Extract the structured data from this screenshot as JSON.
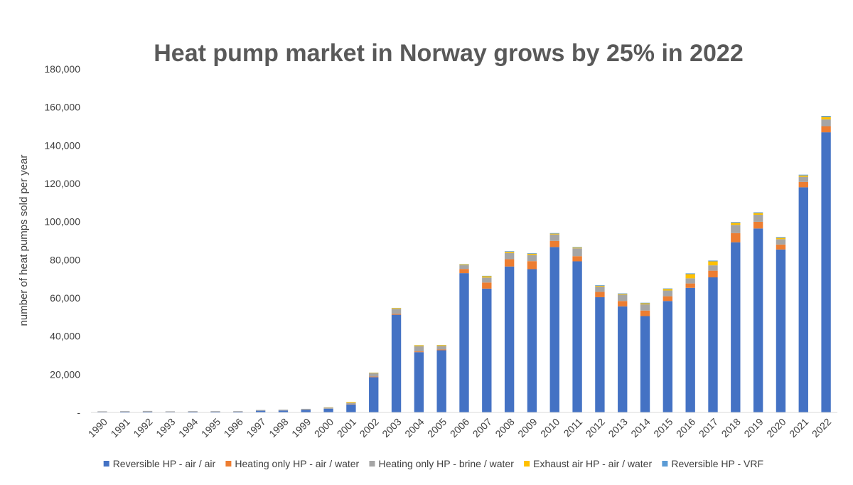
{
  "chart_data": {
    "type": "bar",
    "stacked": true,
    "title": "Heat pump market in Norway grows by 25% in 2022",
    "xlabel": "",
    "ylabel": "number of heat pumps sold per year",
    "ylim": [
      0,
      180000
    ],
    "yticks": [
      0,
      20000,
      40000,
      60000,
      80000,
      100000,
      120000,
      140000,
      160000,
      180000
    ],
    "ytick_labels": [
      "-",
      "20,000",
      "40,000",
      "60,000",
      "80,000",
      "100,000",
      "120,000",
      "140,000",
      "160,000",
      "180,000"
    ],
    "grid": false,
    "legend_position": "bottom",
    "categories": [
      "1990",
      "1991",
      "1992",
      "1993",
      "1994",
      "1995",
      "1996",
      "1997",
      "1998",
      "1999",
      "2000",
      "2001",
      "2002",
      "2003",
      "2004",
      "2005",
      "2006",
      "2007",
      "2008",
      "2009",
      "2010",
      "2011",
      "2012",
      "2013",
      "2014",
      "2015",
      "2016",
      "2017",
      "2018",
      "2019",
      "2020",
      "2021",
      "2022"
    ],
    "series": [
      {
        "name": "Reversible HP - air / air",
        "color": "#4472C4",
        "values": [
          300,
          400,
          400,
          300,
          400,
          400,
          400,
          900,
          1000,
          1400,
          1900,
          4200,
          18500,
          51200,
          31600,
          32600,
          73000,
          64900,
          76500,
          75100,
          86700,
          79200,
          60400,
          55600,
          50500,
          58400,
          65300,
          70800,
          89200,
          96400,
          85400,
          118000,
          146800
        ]
      },
      {
        "name": "Heating only HP - air / water",
        "color": "#ED7D31",
        "values": [
          0,
          0,
          0,
          0,
          0,
          0,
          0,
          0,
          0,
          0,
          0,
          100,
          300,
          500,
          400,
          400,
          2200,
          3200,
          3800,
          4200,
          3200,
          2700,
          2800,
          2800,
          2900,
          2500,
          2300,
          3500,
          4800,
          3500,
          2600,
          2800,
          3200
        ]
      },
      {
        "name": "Heating only HP - brine / water",
        "color": "#A5A5A5",
        "values": [
          300,
          300,
          400,
          300,
          300,
          300,
          300,
          400,
          500,
          500,
          700,
          800,
          1700,
          2600,
          2700,
          1800,
          2000,
          2600,
          3300,
          3300,
          3400,
          4100,
          2800,
          3300,
          3300,
          3000,
          2700,
          2800,
          4300,
          3700,
          2800,
          2700,
          3600
        ]
      },
      {
        "name": "Exhaust air HP - air / water",
        "color": "#FFC000",
        "values": [
          0,
          0,
          0,
          0,
          0,
          0,
          0,
          0,
          0,
          0,
          100,
          400,
          300,
          400,
          500,
          500,
          400,
          700,
          600,
          600,
          400,
          400,
          400,
          400,
          500,
          800,
          2200,
          2100,
          1100,
          900,
          700,
          700,
          1300
        ]
      },
      {
        "name": "Reversible HP - VRF",
        "color": "#5B9BD5",
        "values": [
          0,
          0,
          0,
          0,
          0,
          0,
          0,
          0,
          0,
          0,
          0,
          0,
          100,
          100,
          100,
          100,
          200,
          200,
          300,
          300,
          300,
          300,
          300,
          300,
          300,
          300,
          400,
          400,
          400,
          400,
          400,
          400,
          500
        ]
      }
    ]
  }
}
